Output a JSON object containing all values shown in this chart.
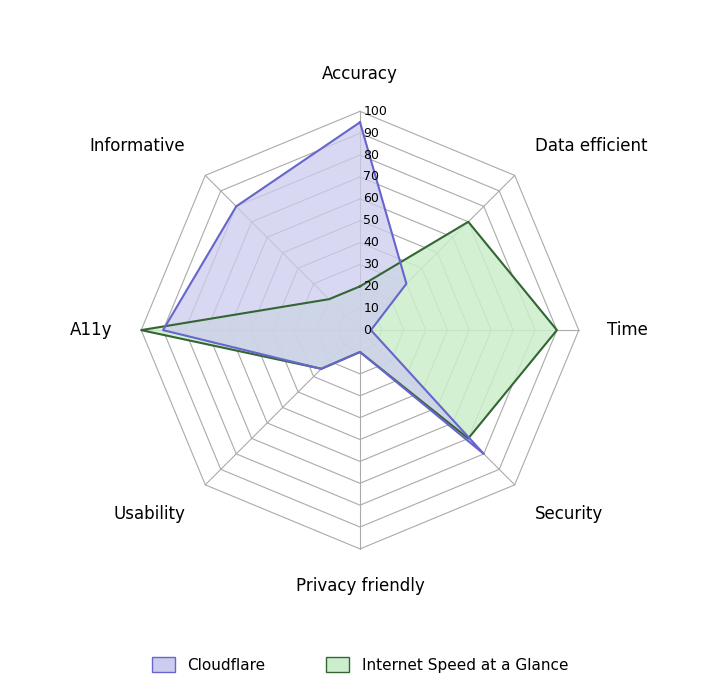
{
  "categories": [
    "Accuracy",
    "Data efficient",
    "Time",
    "Security",
    "Privacy friendly",
    "Usability",
    "A11y",
    "Informative"
  ],
  "cloudflare": [
    95,
    30,
    5,
    80,
    10,
    25,
    90,
    80
  ],
  "internet_speed": [
    20,
    70,
    90,
    70,
    10,
    25,
    100,
    20
  ],
  "cloudflare_color": "#6666cc",
  "cloudflare_fill": "#ccccee",
  "internet_color": "#336633",
  "internet_fill": "#cceecc",
  "grid_color": "#aaaaaa",
  "background_color": "#ffffff",
  "legend_cf": "Cloudflare",
  "legend_isg": "Internet Speed at a Glance",
  "rmax": 100,
  "rticks": [
    0,
    10,
    20,
    30,
    40,
    50,
    60,
    70,
    80,
    90,
    100
  ],
  "tick_fontsize": 9,
  "label_fontsize": 12,
  "legend_fontsize": 11
}
